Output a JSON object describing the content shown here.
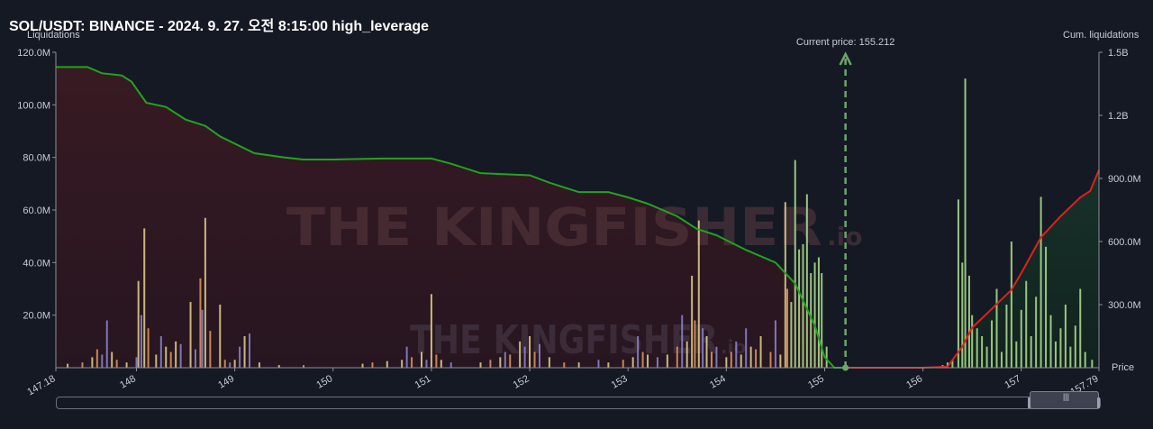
{
  "header": {
    "title": "SOL/USDT: BINANCE - 2024. 9. 27. 오전 8:15:00 high_leverage"
  },
  "colors": {
    "background": "#151924",
    "short_area": "#2a1a24",
    "long_area": "#162a22",
    "cum_short_line": "#22a31f",
    "cum_long_line": "#e0201c",
    "current_price_line": "#6aa86a"
  },
  "watermark": {
    "brand": "THE KINGFISHER",
    "suffix": ".io"
  },
  "chart_data": {
    "type": "bar",
    "title": "SOL/USDT: BINANCE - 2024. 9. 27. 오전 8:15:00 high_leverage",
    "xlabel": "Price",
    "ylabel": "Liquidations",
    "y2label": "Cum. liquidations",
    "current_price_label": "Current price: 155.212",
    "current_price": 155.212,
    "xlim": [
      147.18,
      157.79
    ],
    "ylim": [
      0,
      120000000
    ],
    "y2lim": [
      0,
      1500000000
    ],
    "x_ticks": [
      "147.18",
      "148",
      "149",
      "150",
      "151",
      "152",
      "153",
      "154",
      "155",
      "156",
      "157",
      "157.79"
    ],
    "x_tick_values": [
      147.18,
      148,
      149,
      150,
      151,
      152,
      153,
      154,
      155,
      156,
      157,
      157.79
    ],
    "y_ticks": [
      "20.0M",
      "40.0M",
      "60.0M",
      "80.0M",
      "100.0M",
      "120.0M"
    ],
    "y_tick_values": [
      20000000,
      40000000,
      60000000,
      80000000,
      100000000,
      120000000
    ],
    "y2_ticks": [
      "300.0M",
      "600.0M",
      "900.0M",
      "1.2B",
      "1.5B"
    ],
    "y2_tick_values": [
      300000000,
      600000000,
      900000000,
      1200000000,
      1500000000
    ],
    "grid": false,
    "bars": [
      {
        "x": 147.3,
        "y": 1.5,
        "c": "y"
      },
      {
        "x": 147.45,
        "y": 2.0,
        "c": "o"
      },
      {
        "x": 147.55,
        "y": 4.0,
        "c": "y"
      },
      {
        "x": 147.6,
        "y": 7.0,
        "c": "o"
      },
      {
        "x": 147.65,
        "y": 5.0,
        "c": "p"
      },
      {
        "x": 147.7,
        "y": 18.0,
        "c": "p"
      },
      {
        "x": 147.75,
        "y": 6.0,
        "c": "y"
      },
      {
        "x": 147.8,
        "y": 3.0,
        "c": "o"
      },
      {
        "x": 147.9,
        "y": 2.0,
        "c": "y"
      },
      {
        "x": 148.0,
        "y": 4.0,
        "c": "p"
      },
      {
        "x": 148.02,
        "y": 33.0,
        "c": "y"
      },
      {
        "x": 148.05,
        "y": 20.0,
        "c": "p"
      },
      {
        "x": 148.08,
        "y": 53.0,
        "c": "y"
      },
      {
        "x": 148.12,
        "y": 15.0,
        "c": "o"
      },
      {
        "x": 148.2,
        "y": 5.0,
        "c": "y"
      },
      {
        "x": 148.25,
        "y": 12.0,
        "c": "p"
      },
      {
        "x": 148.3,
        "y": 8.0,
        "c": "y"
      },
      {
        "x": 148.35,
        "y": 6.0,
        "c": "o"
      },
      {
        "x": 148.4,
        "y": 10.0,
        "c": "y"
      },
      {
        "x": 148.45,
        "y": 9.0,
        "c": "p"
      },
      {
        "x": 148.55,
        "y": 25.0,
        "c": "y"
      },
      {
        "x": 148.6,
        "y": 7.0,
        "c": "p"
      },
      {
        "x": 148.65,
        "y": 34.0,
        "c": "o"
      },
      {
        "x": 148.67,
        "y": 22.0,
        "c": "p"
      },
      {
        "x": 148.7,
        "y": 57.0,
        "c": "y"
      },
      {
        "x": 148.75,
        "y": 14.0,
        "c": "o"
      },
      {
        "x": 148.85,
        "y": 24.0,
        "c": "y"
      },
      {
        "x": 148.9,
        "y": 3.0,
        "c": "o"
      },
      {
        "x": 148.95,
        "y": 2.0,
        "c": "p"
      },
      {
        "x": 149.0,
        "y": 3.0,
        "c": "y"
      },
      {
        "x": 149.05,
        "y": 8.0,
        "c": "p"
      },
      {
        "x": 149.1,
        "y": 12.0,
        "c": "y"
      },
      {
        "x": 149.15,
        "y": 13.0,
        "c": "p"
      },
      {
        "x": 149.25,
        "y": 2.0,
        "c": "y"
      },
      {
        "x": 149.45,
        "y": 1.0,
        "c": "y"
      },
      {
        "x": 149.7,
        "y": 1.0,
        "c": "o"
      },
      {
        "x": 150.3,
        "y": 1.5,
        "c": "y"
      },
      {
        "x": 150.4,
        "y": 2.0,
        "c": "o"
      },
      {
        "x": 150.55,
        "y": 2.5,
        "c": "y"
      },
      {
        "x": 150.7,
        "y": 3.0,
        "c": "y"
      },
      {
        "x": 150.75,
        "y": 8.0,
        "c": "p"
      },
      {
        "x": 150.8,
        "y": 4.0,
        "c": "o"
      },
      {
        "x": 150.9,
        "y": 6.0,
        "c": "y"
      },
      {
        "x": 150.95,
        "y": 3.0,
        "c": "p"
      },
      {
        "x": 151.0,
        "y": 28.0,
        "c": "y"
      },
      {
        "x": 151.05,
        "y": 5.0,
        "c": "o"
      },
      {
        "x": 151.1,
        "y": 3.0,
        "c": "y"
      },
      {
        "x": 151.2,
        "y": 2.0,
        "c": "p"
      },
      {
        "x": 151.5,
        "y": 2.0,
        "c": "y"
      },
      {
        "x": 151.6,
        "y": 3.0,
        "c": "o"
      },
      {
        "x": 151.7,
        "y": 4.0,
        "c": "y"
      },
      {
        "x": 151.75,
        "y": 6.0,
        "c": "p"
      },
      {
        "x": 151.8,
        "y": 5.0,
        "c": "o"
      },
      {
        "x": 151.9,
        "y": 10.0,
        "c": "y"
      },
      {
        "x": 151.95,
        "y": 8.0,
        "c": "p"
      },
      {
        "x": 152.0,
        "y": 12.0,
        "c": "y"
      },
      {
        "x": 152.05,
        "y": 6.0,
        "c": "o"
      },
      {
        "x": 152.1,
        "y": 9.0,
        "c": "p"
      },
      {
        "x": 152.2,
        "y": 4.0,
        "c": "y"
      },
      {
        "x": 152.35,
        "y": 2.0,
        "c": "o"
      },
      {
        "x": 152.5,
        "y": 2.0,
        "c": "y"
      },
      {
        "x": 152.7,
        "y": 3.0,
        "c": "p"
      },
      {
        "x": 152.8,
        "y": 2.0,
        "c": "y"
      },
      {
        "x": 152.95,
        "y": 3.0,
        "c": "o"
      },
      {
        "x": 153.05,
        "y": 4.0,
        "c": "y"
      },
      {
        "x": 153.1,
        "y": 12.0,
        "c": "p"
      },
      {
        "x": 153.15,
        "y": 6.0,
        "c": "o"
      },
      {
        "x": 153.2,
        "y": 5.0,
        "c": "y"
      },
      {
        "x": 153.3,
        "y": 4.0,
        "c": "p"
      },
      {
        "x": 153.4,
        "y": 5.0,
        "c": "y"
      },
      {
        "x": 153.5,
        "y": 8.0,
        "c": "o"
      },
      {
        "x": 153.55,
        "y": 20.0,
        "c": "p"
      },
      {
        "x": 153.6,
        "y": 10.0,
        "c": "y"
      },
      {
        "x": 153.65,
        "y": 35.0,
        "c": "y"
      },
      {
        "x": 153.68,
        "y": 18.0,
        "c": "o"
      },
      {
        "x": 153.72,
        "y": 56.0,
        "c": "y"
      },
      {
        "x": 153.76,
        "y": 15.0,
        "c": "p"
      },
      {
        "x": 153.8,
        "y": 12.0,
        "c": "y"
      },
      {
        "x": 153.85,
        "y": 6.0,
        "c": "o"
      },
      {
        "x": 153.9,
        "y": 8.0,
        "c": "p"
      },
      {
        "x": 154.0,
        "y": 4.0,
        "c": "y"
      },
      {
        "x": 154.05,
        "y": 6.0,
        "c": "o"
      },
      {
        "x": 154.1,
        "y": 10.0,
        "c": "p"
      },
      {
        "x": 154.15,
        "y": 5.0,
        "c": "y"
      },
      {
        "x": 154.2,
        "y": 15.0,
        "c": "p"
      },
      {
        "x": 154.25,
        "y": 8.0,
        "c": "y"
      },
      {
        "x": 154.3,
        "y": 7.0,
        "c": "o"
      },
      {
        "x": 154.35,
        "y": 12.0,
        "c": "y"
      },
      {
        "x": 154.45,
        "y": 6.0,
        "c": "o"
      },
      {
        "x": 154.5,
        "y": 18.0,
        "c": "p"
      },
      {
        "x": 154.55,
        "y": 5.0,
        "c": "y"
      },
      {
        "x": 154.6,
        "y": 63.0,
        "c": "y"
      },
      {
        "x": 154.62,
        "y": 30.0,
        "c": "o"
      },
      {
        "x": 154.66,
        "y": 25.0,
        "c": "g"
      },
      {
        "x": 154.7,
        "y": 79.0,
        "c": "g"
      },
      {
        "x": 154.74,
        "y": 45.0,
        "c": "g"
      },
      {
        "x": 154.78,
        "y": 47.0,
        "c": "g"
      },
      {
        "x": 154.82,
        "y": 66.0,
        "c": "g"
      },
      {
        "x": 154.86,
        "y": 36.0,
        "c": "g"
      },
      {
        "x": 154.9,
        "y": 40.0,
        "c": "g"
      },
      {
        "x": 154.94,
        "y": 42.0,
        "c": "g"
      },
      {
        "x": 154.97,
        "y": 36.0,
        "c": "g"
      },
      {
        "x": 155.02,
        "y": 8.0,
        "c": "g"
      },
      {
        "x": 156.2,
        "y": 1.0,
        "c": "g"
      },
      {
        "x": 156.25,
        "y": 2.0,
        "c": "g"
      },
      {
        "x": 156.3,
        "y": 3.0,
        "c": "g"
      },
      {
        "x": 156.36,
        "y": 64.0,
        "c": "g"
      },
      {
        "x": 156.4,
        "y": 40.0,
        "c": "g"
      },
      {
        "x": 156.43,
        "y": 110.0,
        "c": "g"
      },
      {
        "x": 156.47,
        "y": 35.0,
        "c": "g"
      },
      {
        "x": 156.5,
        "y": 20.0,
        "c": "g"
      },
      {
        "x": 156.55,
        "y": 15.0,
        "c": "g"
      },
      {
        "x": 156.6,
        "y": 12.0,
        "c": "g"
      },
      {
        "x": 156.65,
        "y": 8.0,
        "c": "g"
      },
      {
        "x": 156.7,
        "y": 18.0,
        "c": "g"
      },
      {
        "x": 156.75,
        "y": 30.0,
        "c": "g"
      },
      {
        "x": 156.8,
        "y": 6.0,
        "c": "g"
      },
      {
        "x": 156.85,
        "y": 24.0,
        "c": "g"
      },
      {
        "x": 156.9,
        "y": 48.0,
        "c": "g"
      },
      {
        "x": 156.95,
        "y": 10.0,
        "c": "g"
      },
      {
        "x": 157.0,
        "y": 22.0,
        "c": "g"
      },
      {
        "x": 157.05,
        "y": 33.0,
        "c": "g"
      },
      {
        "x": 157.1,
        "y": 12.0,
        "c": "g"
      },
      {
        "x": 157.15,
        "y": 27.0,
        "c": "g"
      },
      {
        "x": 157.2,
        "y": 65.0,
        "c": "g"
      },
      {
        "x": 157.25,
        "y": 46.0,
        "c": "g"
      },
      {
        "x": 157.3,
        "y": 20.0,
        "c": "g"
      },
      {
        "x": 157.35,
        "y": 10.0,
        "c": "g"
      },
      {
        "x": 157.4,
        "y": 15.0,
        "c": "g"
      },
      {
        "x": 157.45,
        "y": 24.0,
        "c": "g"
      },
      {
        "x": 157.5,
        "y": 8.0,
        "c": "g"
      },
      {
        "x": 157.55,
        "y": 16.0,
        "c": "g"
      },
      {
        "x": 157.6,
        "y": 30.0,
        "c": "g"
      },
      {
        "x": 157.65,
        "y": 6.0,
        "c": "g"
      },
      {
        "x": 157.72,
        "y": 3.0,
        "c": "g"
      }
    ],
    "cum_short": [
      [
        147.18,
        1430
      ],
      [
        147.5,
        1430
      ],
      [
        147.65,
        1400
      ],
      [
        147.85,
        1390
      ],
      [
        147.95,
        1360
      ],
      [
        148.1,
        1260
      ],
      [
        148.3,
        1240
      ],
      [
        148.5,
        1180
      ],
      [
        148.7,
        1150
      ],
      [
        148.85,
        1100
      ],
      [
        149.2,
        1020
      ],
      [
        149.5,
        1000
      ],
      [
        149.7,
        990
      ],
      [
        150.0,
        990
      ],
      [
        150.5,
        995
      ],
      [
        151.0,
        995
      ],
      [
        151.2,
        970
      ],
      [
        151.5,
        925
      ],
      [
        152.0,
        915
      ],
      [
        152.2,
        880
      ],
      [
        152.5,
        835
      ],
      [
        152.8,
        835
      ],
      [
        153.0,
        810
      ],
      [
        153.2,
        780
      ],
      [
        153.5,
        720
      ],
      [
        153.7,
        660
      ],
      [
        153.9,
        630
      ],
      [
        154.2,
        560
      ],
      [
        154.5,
        500
      ],
      [
        154.7,
        400
      ],
      [
        154.9,
        200
      ],
      [
        155.0,
        50
      ],
      [
        155.1,
        0
      ],
      [
        155.212,
        0
      ]
    ],
    "cum_long": [
      [
        155.212,
        0
      ],
      [
        156.0,
        0
      ],
      [
        156.25,
        5
      ],
      [
        156.4,
        100
      ],
      [
        156.5,
        190
      ],
      [
        156.7,
        280
      ],
      [
        156.9,
        370
      ],
      [
        157.0,
        450
      ],
      [
        157.2,
        620
      ],
      [
        157.4,
        720
      ],
      [
        157.6,
        810
      ],
      [
        157.7,
        840
      ],
      [
        157.79,
        940
      ]
    ],
    "cum_units": "millions"
  },
  "scrollbar": {
    "grip": "|||"
  }
}
